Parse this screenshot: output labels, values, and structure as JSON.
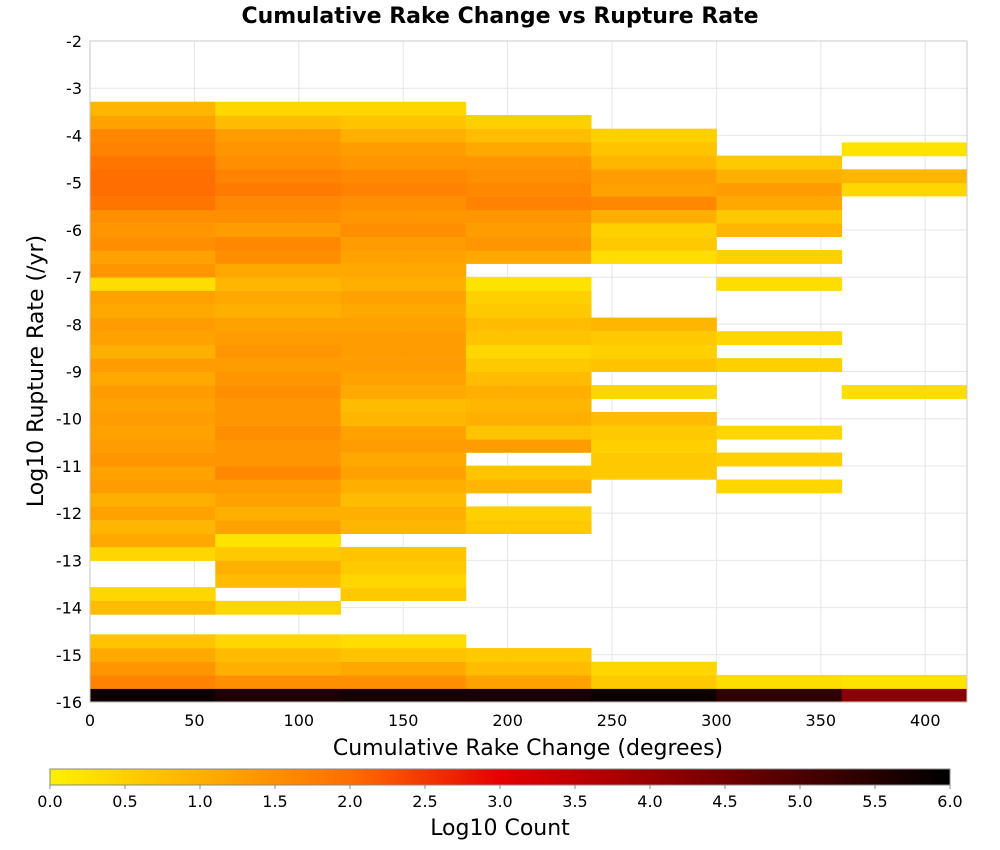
{
  "chart_data": {
    "type": "heatmap",
    "title": "Cumulative Rake Change vs Rupture Rate",
    "xlabel": "Cumulative Rake Change (degrees)",
    "ylabel": "Log10 Rupture Rate (/yr)",
    "xlim": [
      0,
      420
    ],
    "ylim": [
      -16,
      -2
    ],
    "x_ticks": [
      0,
      50,
      100,
      150,
      200,
      250,
      300,
      350,
      400
    ],
    "y_ticks": [
      -2,
      -3,
      -4,
      -5,
      -6,
      -7,
      -8,
      -9,
      -10,
      -11,
      -12,
      -13,
      -14,
      -15,
      -16
    ],
    "x_bin_edges": [
      0,
      60,
      120,
      180,
      240,
      300,
      360,
      420
    ],
    "y_bin_size": 0.2857,
    "grid": true,
    "colorbar": {
      "label": "Log10 Count",
      "range": [
        0,
        6
      ],
      "ticks": [
        "0.0",
        "0.5",
        "1.0",
        "1.5",
        "2.0",
        "2.5",
        "3.0",
        "3.5",
        "4.0",
        "4.5",
        "5.0",
        "5.5",
        "6.0"
      ],
      "colormap": "heat",
      "position": "bottom"
    },
    "columns": [
      {
        "x_range": [
          0,
          60
        ],
        "cells": [
          {
            "y": -15.86,
            "value": 5.8
          },
          {
            "y": -15.57,
            "value": 1.7
          },
          {
            "y": -15.29,
            "value": 1.4
          },
          {
            "y": -15.0,
            "value": 1.1
          },
          {
            "y": -14.71,
            "value": 0.7
          },
          {
            "y": -14.0,
            "value": 0.8
          },
          {
            "y": -13.71,
            "value": 0.4
          },
          {
            "y": -12.86,
            "value": 0.4
          },
          {
            "y": -12.57,
            "value": 1.1
          },
          {
            "y": -12.29,
            "value": 0.9
          },
          {
            "y": -12.0,
            "value": 1.2
          },
          {
            "y": -11.71,
            "value": 1.0
          },
          {
            "y": -11.43,
            "value": 1.3
          },
          {
            "y": -11.14,
            "value": 1.2
          },
          {
            "y": -10.86,
            "value": 1.4
          },
          {
            "y": -10.57,
            "value": 1.3
          },
          {
            "y": -10.29,
            "value": 1.2
          },
          {
            "y": -10.0,
            "value": 1.3
          },
          {
            "y": -9.71,
            "value": 1.2
          },
          {
            "y": -9.43,
            "value": 1.3
          },
          {
            "y": -9.14,
            "value": 1.1
          },
          {
            "y": -8.86,
            "value": 1.3
          },
          {
            "y": -8.57,
            "value": 1.0
          },
          {
            "y": -8.29,
            "value": 1.2
          },
          {
            "y": -8.0,
            "value": 1.3
          },
          {
            "y": -7.71,
            "value": 1.1
          },
          {
            "y": -7.43,
            "value": 1.2
          },
          {
            "y": -7.14,
            "value": 0.3
          },
          {
            "y": -6.86,
            "value": 1.4
          },
          {
            "y": -6.57,
            "value": 1.2
          },
          {
            "y": -6.29,
            "value": 1.5
          },
          {
            "y": -6.0,
            "value": 1.4
          },
          {
            "y": -5.71,
            "value": 1.5
          },
          {
            "y": -5.43,
            "value": 1.9
          },
          {
            "y": -5.14,
            "value": 2.0
          },
          {
            "y": -4.86,
            "value": 2.0
          },
          {
            "y": -4.57,
            "value": 1.9
          },
          {
            "y": -4.29,
            "value": 1.7
          },
          {
            "y": -4.0,
            "value": 1.6
          },
          {
            "y": -3.71,
            "value": 1.2
          },
          {
            "y": -3.43,
            "value": 0.9
          }
        ]
      },
      {
        "x_range": [
          60,
          120
        ],
        "cells": [
          {
            "y": -15.86,
            "value": 5.6
          },
          {
            "y": -15.57,
            "value": 1.5
          },
          {
            "y": -15.29,
            "value": 1.0
          },
          {
            "y": -15.0,
            "value": 0.8
          },
          {
            "y": -14.71,
            "value": 0.4
          },
          {
            "y": -14.0,
            "value": 0.4
          },
          {
            "y": -13.43,
            "value": 0.8
          },
          {
            "y": -13.14,
            "value": 1.0
          },
          {
            "y": -12.86,
            "value": 0.6
          },
          {
            "y": -12.57,
            "value": 0.2
          },
          {
            "y": -12.29,
            "value": 1.2
          },
          {
            "y": -12.0,
            "value": 1.0
          },
          {
            "y": -11.71,
            "value": 1.2
          },
          {
            "y": -11.43,
            "value": 1.3
          },
          {
            "y": -11.14,
            "value": 1.6
          },
          {
            "y": -10.86,
            "value": 1.4
          },
          {
            "y": -10.57,
            "value": 1.4
          },
          {
            "y": -10.29,
            "value": 1.5
          },
          {
            "y": -10.0,
            "value": 1.4
          },
          {
            "y": -9.71,
            "value": 1.4
          },
          {
            "y": -9.43,
            "value": 1.5
          },
          {
            "y": -9.14,
            "value": 1.4
          },
          {
            "y": -8.86,
            "value": 1.3
          },
          {
            "y": -8.57,
            "value": 1.4
          },
          {
            "y": -8.29,
            "value": 1.3
          },
          {
            "y": -8.0,
            "value": 1.2
          },
          {
            "y": -7.71,
            "value": 1.0
          },
          {
            "y": -7.43,
            "value": 1.1
          },
          {
            "y": -7.14,
            "value": 0.9
          },
          {
            "y": -6.86,
            "value": 1.1
          },
          {
            "y": -6.57,
            "value": 1.5
          },
          {
            "y": -6.29,
            "value": 1.6
          },
          {
            "y": -6.0,
            "value": 1.3
          },
          {
            "y": -5.71,
            "value": 1.5
          },
          {
            "y": -5.43,
            "value": 1.6
          },
          {
            "y": -5.14,
            "value": 1.8
          },
          {
            "y": -4.86,
            "value": 1.7
          },
          {
            "y": -4.57,
            "value": 1.5
          },
          {
            "y": -4.29,
            "value": 1.4
          },
          {
            "y": -4.0,
            "value": 1.3
          },
          {
            "y": -3.71,
            "value": 0.8
          },
          {
            "y": -3.43,
            "value": 0.4
          }
        ]
      },
      {
        "x_range": [
          120,
          180
        ],
        "cells": [
          {
            "y": -15.86,
            "value": 5.7
          },
          {
            "y": -15.57,
            "value": 1.5
          },
          {
            "y": -15.29,
            "value": 1.1
          },
          {
            "y": -15.0,
            "value": 0.7
          },
          {
            "y": -14.71,
            "value": 0.3
          },
          {
            "y": -13.71,
            "value": 0.6
          },
          {
            "y": -13.43,
            "value": 0.4
          },
          {
            "y": -13.14,
            "value": 0.6
          },
          {
            "y": -12.86,
            "value": 0.7
          },
          {
            "y": -12.29,
            "value": 0.9
          },
          {
            "y": -12.0,
            "value": 1.0
          },
          {
            "y": -11.71,
            "value": 0.8
          },
          {
            "y": -11.43,
            "value": 1.0
          },
          {
            "y": -11.14,
            "value": 1.2
          },
          {
            "y": -10.86,
            "value": 1.1
          },
          {
            "y": -10.57,
            "value": 1.3
          },
          {
            "y": -10.29,
            "value": 1.2
          },
          {
            "y": -10.0,
            "value": 0.9
          },
          {
            "y": -9.71,
            "value": 0.8
          },
          {
            "y": -9.43,
            "value": 1.1
          },
          {
            "y": -9.14,
            "value": 1.2
          },
          {
            "y": -8.86,
            "value": 1.3
          },
          {
            "y": -8.57,
            "value": 1.3
          },
          {
            "y": -8.29,
            "value": 1.3
          },
          {
            "y": -8.0,
            "value": 1.2
          },
          {
            "y": -7.71,
            "value": 1.1
          },
          {
            "y": -7.43,
            "value": 1.2
          },
          {
            "y": -7.14,
            "value": 1.0
          },
          {
            "y": -6.86,
            "value": 1.1
          },
          {
            "y": -6.57,
            "value": 1.2
          },
          {
            "y": -6.29,
            "value": 1.3
          },
          {
            "y": -6.0,
            "value": 1.5
          },
          {
            "y": -5.71,
            "value": 1.4
          },
          {
            "y": -5.43,
            "value": 1.5
          },
          {
            "y": -5.14,
            "value": 1.7
          },
          {
            "y": -4.86,
            "value": 1.6
          },
          {
            "y": -4.57,
            "value": 1.4
          },
          {
            "y": -4.29,
            "value": 1.3
          },
          {
            "y": -4.0,
            "value": 1.0
          },
          {
            "y": -3.71,
            "value": 0.7
          },
          {
            "y": -3.43,
            "value": 0.4
          }
        ]
      },
      {
        "x_range": [
          180,
          240
        ],
        "cells": [
          {
            "y": -15.86,
            "value": 5.7
          },
          {
            "y": -15.57,
            "value": 1.2
          },
          {
            "y": -15.29,
            "value": 0.8
          },
          {
            "y": -15.0,
            "value": 0.6
          },
          {
            "y": -12.29,
            "value": 0.6
          },
          {
            "y": -12.0,
            "value": 0.5
          },
          {
            "y": -11.43,
            "value": 0.9
          },
          {
            "y": -11.14,
            "value": 0.7
          },
          {
            "y": -10.57,
            "value": 1.3
          },
          {
            "y": -10.29,
            "value": 0.7
          },
          {
            "y": -10.0,
            "value": 1.0
          },
          {
            "y": -9.71,
            "value": 0.9
          },
          {
            "y": -9.43,
            "value": 1.0
          },
          {
            "y": -9.14,
            "value": 0.8
          },
          {
            "y": -8.86,
            "value": 0.6
          },
          {
            "y": -8.57,
            "value": 0.4
          },
          {
            "y": -8.29,
            "value": 0.7
          },
          {
            "y": -8.0,
            "value": 0.8
          },
          {
            "y": -7.71,
            "value": 0.6
          },
          {
            "y": -7.43,
            "value": 0.5
          },
          {
            "y": -7.14,
            "value": 0.2
          },
          {
            "y": -6.57,
            "value": 1.1
          },
          {
            "y": -6.29,
            "value": 1.4
          },
          {
            "y": -6.0,
            "value": 1.3
          },
          {
            "y": -5.71,
            "value": 1.4
          },
          {
            "y": -5.43,
            "value": 1.7
          },
          {
            "y": -5.14,
            "value": 1.6
          },
          {
            "y": -4.86,
            "value": 1.5
          },
          {
            "y": -4.57,
            "value": 1.4
          },
          {
            "y": -4.29,
            "value": 1.1
          },
          {
            "y": -4.0,
            "value": 0.8
          },
          {
            "y": -3.71,
            "value": 0.5
          }
        ]
      },
      {
        "x_range": [
          240,
          300
        ],
        "cells": [
          {
            "y": -15.86,
            "value": 5.8
          },
          {
            "y": -15.57,
            "value": 0.6
          },
          {
            "y": -15.29,
            "value": 0.4
          },
          {
            "y": -11.14,
            "value": 0.6
          },
          {
            "y": -10.86,
            "value": 0.6
          },
          {
            "y": -10.57,
            "value": 0.5
          },
          {
            "y": -10.29,
            "value": 0.6
          },
          {
            "y": -10.0,
            "value": 0.8
          },
          {
            "y": -9.43,
            "value": 0.4
          },
          {
            "y": -8.86,
            "value": 0.7
          },
          {
            "y": -8.57,
            "value": 0.5
          },
          {
            "y": -8.29,
            "value": 0.6
          },
          {
            "y": -8.0,
            "value": 0.9
          },
          {
            "y": -6.57,
            "value": 0.3
          },
          {
            "y": -6.29,
            "value": 0.6
          },
          {
            "y": -6.0,
            "value": 0.5
          },
          {
            "y": -5.71,
            "value": 1.0
          },
          {
            "y": -5.43,
            "value": 1.6
          },
          {
            "y": -5.14,
            "value": 1.2
          },
          {
            "y": -4.86,
            "value": 1.3
          },
          {
            "y": -4.57,
            "value": 0.9
          },
          {
            "y": -4.29,
            "value": 0.7
          },
          {
            "y": -4.0,
            "value": 0.5
          }
        ]
      },
      {
        "x_range": [
          300,
          360
        ],
        "cells": [
          {
            "y": -15.86,
            "value": 5.4
          },
          {
            "y": -15.57,
            "value": 0.3
          },
          {
            "y": -11.43,
            "value": 0.4
          },
          {
            "y": -10.86,
            "value": 0.5
          },
          {
            "y": -10.29,
            "value": 0.4
          },
          {
            "y": -8.86,
            "value": 0.5
          },
          {
            "y": -8.29,
            "value": 0.4
          },
          {
            "y": -7.14,
            "value": 0.3
          },
          {
            "y": -6.57,
            "value": 0.5
          },
          {
            "y": -6.0,
            "value": 0.9
          },
          {
            "y": -5.71,
            "value": 0.6
          },
          {
            "y": -5.43,
            "value": 1.1
          },
          {
            "y": -5.14,
            "value": 1.3
          },
          {
            "y": -4.86,
            "value": 1.0
          },
          {
            "y": -4.57,
            "value": 0.6
          }
        ]
      },
      {
        "x_range": [
          360,
          420
        ],
        "cells": [
          {
            "y": -15.86,
            "value": 4.2
          },
          {
            "y": -15.57,
            "value": 0.2
          },
          {
            "y": -9.43,
            "value": 0.3
          },
          {
            "y": -5.14,
            "value": 0.4
          },
          {
            "y": -4.86,
            "value": 0.9
          },
          {
            "y": -4.29,
            "value": 0.2
          }
        ]
      }
    ]
  }
}
